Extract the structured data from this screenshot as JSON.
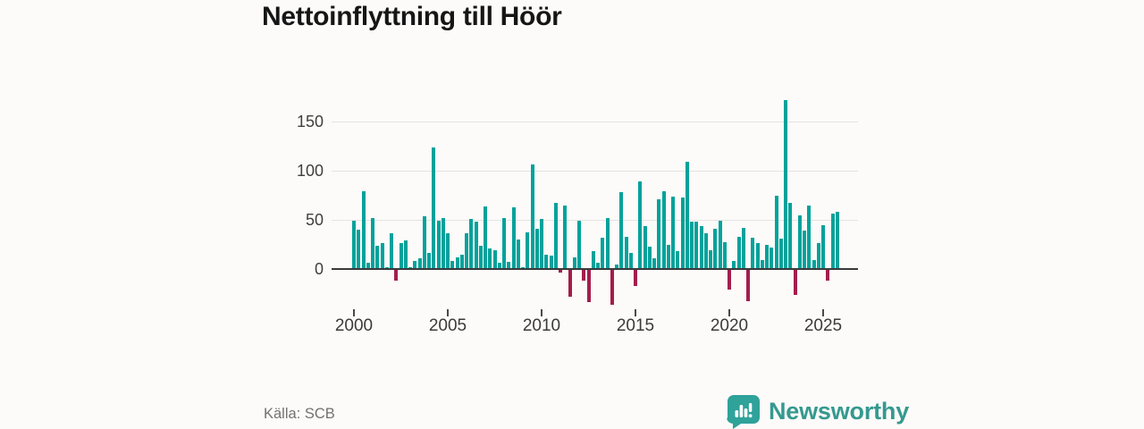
{
  "title": "Nettoinflyttning till Höör",
  "source": "Källa: SCB",
  "brand": {
    "name": "Newsworthy"
  },
  "colors": {
    "background": "#fcfbf9",
    "positive_bar": "#00a29b",
    "negative_bar": "#a31e4d",
    "gridline": "#e4e3e1",
    "axis_line": "#3a3a3a",
    "tick_label": "#3f3f3f",
    "title_text": "#161616",
    "source_text": "#74716e",
    "brand_teal": "#35998f"
  },
  "chart_data": {
    "type": "bar",
    "title": "Nettoinflyttning till Höör",
    "xlabel": "",
    "ylabel": "",
    "frequency": "quarterly",
    "period_start": "2000 Q1",
    "period_end": "2025 Q4",
    "x_tick_labels": [
      "2000",
      "2005",
      "2010",
      "2015",
      "2020",
      "2025"
    ],
    "y_ticks": [
      0,
      50,
      100,
      150
    ],
    "ylim": [
      -40,
      180
    ],
    "grid": "horizontal",
    "legend": "none",
    "bar_color_positive": "#00a29b",
    "bar_color_negative": "#a31e4d",
    "years": [
      {
        "year": 2000,
        "values": [
          49,
          40,
          79,
          6
        ]
      },
      {
        "year": 2001,
        "values": [
          52,
          24,
          26,
          2
        ]
      },
      {
        "year": 2002,
        "values": [
          36,
          -11,
          26,
          29
        ]
      },
      {
        "year": 2003,
        "values": [
          2,
          8,
          11,
          54
        ]
      },
      {
        "year": 2004,
        "values": [
          16,
          124,
          49,
          52
        ]
      },
      {
        "year": 2005,
        "values": [
          36,
          8,
          12,
          15
        ]
      },
      {
        "year": 2006,
        "values": [
          36,
          51,
          48,
          24
        ]
      },
      {
        "year": 2007,
        "values": [
          64,
          21,
          19,
          6
        ]
      },
      {
        "year": 2008,
        "values": [
          52,
          7,
          63,
          30
        ]
      },
      {
        "year": 2009,
        "values": [
          2,
          37,
          106,
          41
        ]
      },
      {
        "year": 2010,
        "values": [
          51,
          15,
          14,
          67
        ]
      },
      {
        "year": 2011,
        "values": [
          -3,
          65,
          -27,
          12
        ]
      },
      {
        "year": 2012,
        "values": [
          49,
          -11,
          -33,
          18
        ]
      },
      {
        "year": 2013,
        "values": [
          6,
          32,
          52,
          -35
        ]
      },
      {
        "year": 2014,
        "values": [
          5,
          78,
          33,
          16
        ]
      },
      {
        "year": 2015,
        "values": [
          -16,
          89,
          44,
          23
        ]
      },
      {
        "year": 2016,
        "values": [
          11,
          71,
          79,
          25
        ]
      },
      {
        "year": 2017,
        "values": [
          74,
          18,
          73,
          109
        ]
      },
      {
        "year": 2018,
        "values": [
          48,
          48,
          44,
          36
        ]
      },
      {
        "year": 2019,
        "values": [
          19,
          41,
          49,
          27
        ]
      },
      {
        "year": 2020,
        "values": [
          -20,
          8,
          33,
          42
        ]
      },
      {
        "year": 2021,
        "values": [
          -32,
          32,
          26,
          9
        ]
      },
      {
        "year": 2022,
        "values": [
          25,
          22,
          75,
          31
        ]
      },
      {
        "year": 2023,
        "values": [
          172,
          67,
          -25,
          55
        ]
      },
      {
        "year": 2024,
        "values": [
          39,
          65,
          9,
          26
        ]
      },
      {
        "year": 2025,
        "values": [
          45,
          -11,
          56,
          58
        ]
      }
    ]
  }
}
